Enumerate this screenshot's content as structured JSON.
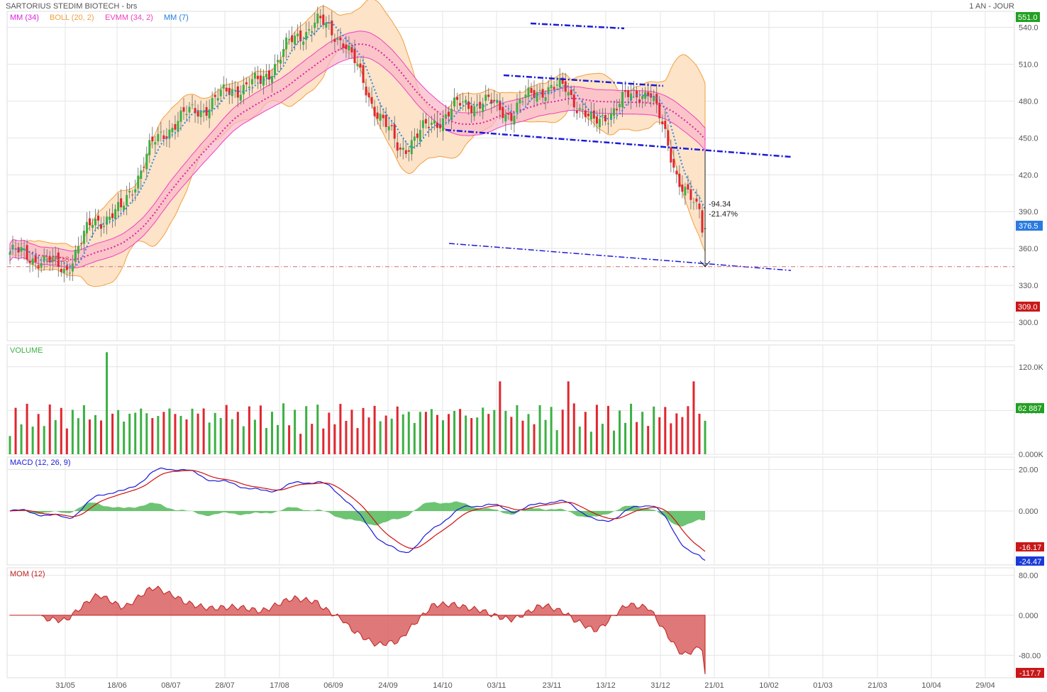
{
  "header": {
    "title": "SARTORIUS STEDIM BIOTECH - brs",
    "timeframe": "1 AN - JOUR"
  },
  "price_panel": {
    "legend": [
      {
        "label": "MM (34)",
        "color": "#e020e0"
      },
      {
        "label": "BOLL (20, 2)",
        "color": "#f0a040"
      },
      {
        "label": "EVMM (34, 2)",
        "color": "#f040c0"
      },
      {
        "label": "MM (7)",
        "color": "#2080e0"
      }
    ],
    "y_ticks": [
      "540.0",
      "510.0",
      "480.0",
      "450.0",
      "420.0",
      "390.0",
      "360.0",
      "330.0",
      "300.0"
    ],
    "badges": {
      "high": "551.0",
      "last": "376.5",
      "low": "309.0"
    },
    "support_label": "345.18",
    "measure_delta": "-94.34",
    "measure_pct": "-21.47%"
  },
  "volume_panel": {
    "title": "VOLUME",
    "y_ticks": [
      "120.0K",
      "60.00K",
      "0.000K"
    ],
    "last_badge": "62 887"
  },
  "macd_panel": {
    "title": "MACD (12, 26, 9)",
    "y_ticks": [
      "20.00",
      "0.000"
    ],
    "badge_signal": "-16.17",
    "badge_macd": "-24.47"
  },
  "mom_panel": {
    "title": "MOM (12)",
    "y_ticks": [
      "80.00",
      "0.000",
      "-80.00"
    ],
    "last_badge": "-117.7"
  },
  "x_ticks": [
    "31/05",
    "18/06",
    "08/07",
    "28/07",
    "17/08",
    "06/09",
    "24/09",
    "14/10",
    "03/11",
    "23/11",
    "13/12",
    "31/12",
    "21/01",
    "10/02",
    "01/03",
    "21/03",
    "10/04",
    "29/04"
  ],
  "colors": {
    "up": "#3cb043",
    "down": "#e0262e",
    "boll_fill": "#fde3c8",
    "boll_line": "#f0a040",
    "ma_band": "#f8b6c8",
    "ma_line": "#e020a0",
    "ma7": "#2a8ae0",
    "trend": "#1a1ad8",
    "grid": "#e4e4e4",
    "macd": "#1a1ad8",
    "signal": "#d01010",
    "hist": "#3cb043",
    "mom_fill": "#d96060"
  },
  "chart_data": [
    {
      "type": "candlestick",
      "title": "SARTORIUS STEDIM BIOTECH - brs",
      "ylim": [
        285,
        553
      ],
      "approx_close_path": [
        {
          "date": "24/05",
          "close": 357
        },
        {
          "date": "31/05",
          "close": 352
        },
        {
          "date": "07/06",
          "close": 343
        },
        {
          "date": "18/06",
          "close": 382
        },
        {
          "date": "28/06",
          "close": 390
        },
        {
          "date": "08/07",
          "close": 440
        },
        {
          "date": "18/07",
          "close": 465
        },
        {
          "date": "28/07",
          "close": 475
        },
        {
          "date": "07/08",
          "close": 490
        },
        {
          "date": "17/08",
          "close": 495
        },
        {
          "date": "27/08",
          "close": 525
        },
        {
          "date": "06/09",
          "close": 545
        },
        {
          "date": "16/09",
          "close": 530
        },
        {
          "date": "24/09",
          "close": 480
        },
        {
          "date": "04/10",
          "close": 440
        },
        {
          "date": "14/10",
          "close": 458
        },
        {
          "date": "24/10",
          "close": 475
        },
        {
          "date": "03/11",
          "close": 480
        },
        {
          "date": "13/11",
          "close": 470
        },
        {
          "date": "23/11",
          "close": 490
        },
        {
          "date": "03/12",
          "close": 490
        },
        {
          "date": "13/12",
          "close": 460
        },
        {
          "date": "23/12",
          "close": 480
        },
        {
          "date": "31/12",
          "close": 490
        },
        {
          "date": "07/01",
          "close": 420
        },
        {
          "date": "14/01",
          "close": 376.5
        }
      ],
      "high": 551.0,
      "low": 309.0,
      "last": 376.5,
      "support": 345.18,
      "measured_move": {
        "delta": -94.34,
        "pct": -21.47
      }
    },
    {
      "type": "bar",
      "title": "VOLUME",
      "ylim": [
        0,
        150000
      ],
      "last": 62887,
      "peak": 140000
    },
    {
      "type": "line",
      "title": "MACD (12, 26, 9)",
      "ylim": [
        -26,
        26
      ],
      "series": [
        {
          "name": "MACD",
          "last": -24.47
        },
        {
          "name": "Signal",
          "last": -16.17
        }
      ]
    },
    {
      "type": "area",
      "title": "MOM (12)",
      "ylim": [
        -125,
        95
      ],
      "last": -117.7
    }
  ]
}
